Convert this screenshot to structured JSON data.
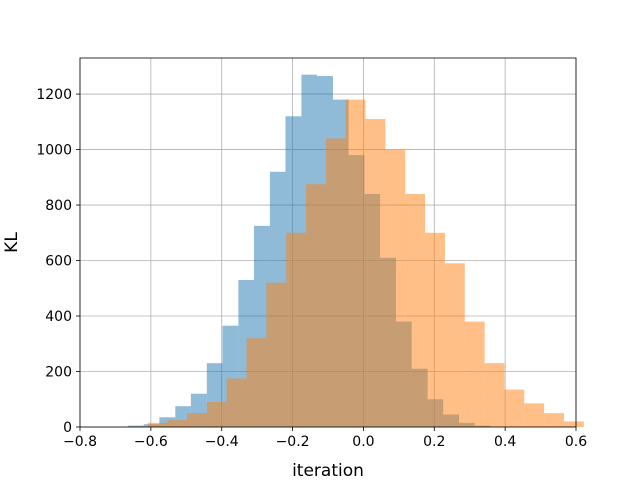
{
  "chart_data": {
    "type": "bar",
    "xlabel": "iteration",
    "ylabel": "KL",
    "xlim": [
      -0.8,
      0.6
    ],
    "ylim": [
      0,
      1330
    ],
    "xticks": [
      "−0.8",
      "−0.6",
      "−0.4",
      "−0.2",
      "0.0",
      "0.2",
      "0.4",
      "0.6"
    ],
    "xtick_values": [
      -0.8,
      -0.6,
      -0.4,
      -0.2,
      0.0,
      0.2,
      0.4,
      0.6
    ],
    "yticks": [
      "0",
      "200",
      "400",
      "600",
      "800",
      "1000",
      "1200"
    ],
    "ytick_values": [
      0,
      200,
      400,
      600,
      800,
      1000,
      1200
    ],
    "grid": true,
    "legend": "none",
    "series": [
      {
        "color": "#1f77b4",
        "opacity": 0.5,
        "bins": [
          [
            -0.665,
            -0.62,
            5
          ],
          [
            -0.62,
            -0.576,
            10
          ],
          [
            -0.576,
            -0.531,
            35
          ],
          [
            -0.531,
            -0.487,
            75
          ],
          [
            -0.487,
            -0.442,
            120
          ],
          [
            -0.442,
            -0.398,
            230
          ],
          [
            -0.398,
            -0.353,
            365
          ],
          [
            -0.353,
            -0.309,
            530
          ],
          [
            -0.309,
            -0.264,
            725
          ],
          [
            -0.264,
            -0.22,
            920
          ],
          [
            -0.22,
            -0.175,
            1120
          ],
          [
            -0.175,
            -0.131,
            1270
          ],
          [
            -0.131,
            -0.086,
            1265
          ],
          [
            -0.086,
            -0.042,
            1180
          ],
          [
            -0.042,
            0.003,
            980
          ],
          [
            0.003,
            0.047,
            840
          ],
          [
            0.047,
            0.092,
            610
          ],
          [
            0.092,
            0.136,
            380
          ],
          [
            0.136,
            0.181,
            210
          ],
          [
            0.181,
            0.225,
            100
          ],
          [
            0.225,
            0.27,
            45
          ],
          [
            0.27,
            0.314,
            15
          ],
          [
            0.314,
            0.359,
            5
          ]
        ]
      },
      {
        "color": "#ff7f0e",
        "opacity": 0.5,
        "bins": [
          [
            -0.665,
            -0.609,
            2
          ],
          [
            -0.609,
            -0.553,
            15
          ],
          [
            -0.553,
            -0.498,
            25
          ],
          [
            -0.498,
            -0.442,
            50
          ],
          [
            -0.442,
            -0.386,
            90
          ],
          [
            -0.386,
            -0.33,
            175
          ],
          [
            -0.33,
            -0.274,
            320
          ],
          [
            -0.274,
            -0.218,
            520
          ],
          [
            -0.218,
            -0.162,
            700
          ],
          [
            -0.162,
            -0.106,
            875
          ],
          [
            -0.106,
            -0.05,
            1040
          ],
          [
            -0.05,
            0.006,
            1180
          ],
          [
            0.006,
            0.062,
            1110
          ],
          [
            0.062,
            0.118,
            1000
          ],
          [
            0.118,
            0.174,
            840
          ],
          [
            0.174,
            0.23,
            700
          ],
          [
            0.23,
            0.286,
            590
          ],
          [
            0.286,
            0.342,
            380
          ],
          [
            0.342,
            0.398,
            230
          ],
          [
            0.398,
            0.454,
            135
          ],
          [
            0.454,
            0.51,
            85
          ],
          [
            0.51,
            0.566,
            50
          ],
          [
            0.566,
            0.622,
            20
          ]
        ]
      }
    ]
  }
}
